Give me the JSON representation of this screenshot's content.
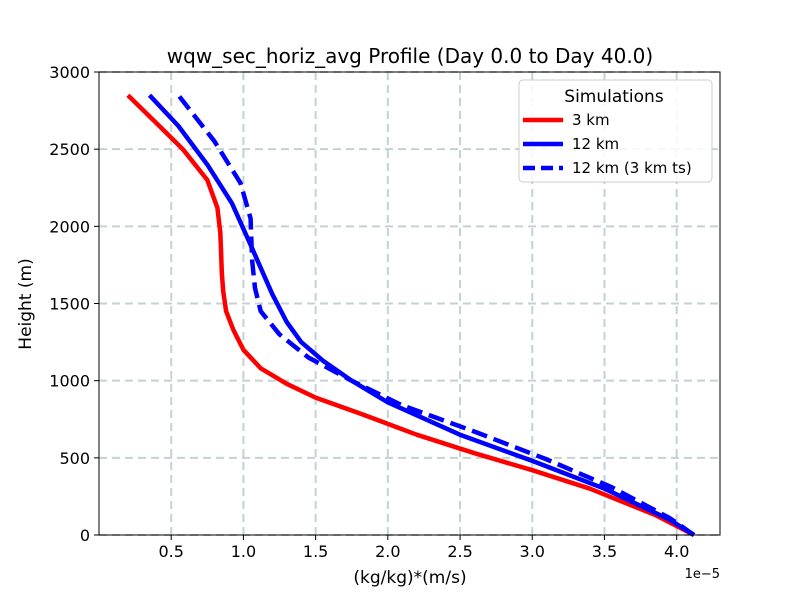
{
  "chart_data": {
    "type": "line",
    "title": "wqw_sec_horiz_avg Profile (Day 0.0 to Day 40.0)",
    "xlabel": "(kg/kg)*(m/s)",
    "ylabel": "Height (m)",
    "x_scale_label": "1e−5",
    "xlim": [
      0.0,
      4.3
    ],
    "ylim": [
      0,
      3000
    ],
    "xticks": [
      0.5,
      1.0,
      1.5,
      2.0,
      2.5,
      3.0,
      3.5,
      4.0
    ],
    "xtick_labels": [
      "0.5",
      "1.0",
      "1.5",
      "2.0",
      "2.5",
      "3.0",
      "3.5",
      "4.0"
    ],
    "yticks": [
      0,
      500,
      1000,
      1500,
      2000,
      2500,
      3000
    ],
    "ytick_labels": [
      "0",
      "500",
      "1000",
      "1500",
      "2000",
      "2500",
      "3000"
    ],
    "grid": true,
    "legend": {
      "title": "Simulations",
      "location": "upper-right"
    },
    "series": [
      {
        "name": "3 km",
        "color": "#ff0000",
        "style": "solid",
        "points": [
          [
            4.12,
            0
          ],
          [
            3.85,
            130
          ],
          [
            3.4,
            300
          ],
          [
            3.0,
            420
          ],
          [
            2.6,
            530
          ],
          [
            2.2,
            650
          ],
          [
            1.8,
            790
          ],
          [
            1.5,
            890
          ],
          [
            1.3,
            980
          ],
          [
            1.12,
            1080
          ],
          [
            1.0,
            1200
          ],
          [
            0.93,
            1330
          ],
          [
            0.88,
            1450
          ],
          [
            0.86,
            1580
          ],
          [
            0.85,
            1700
          ],
          [
            0.845,
            1850
          ],
          [
            0.84,
            1960
          ],
          [
            0.82,
            2120
          ],
          [
            0.75,
            2300
          ],
          [
            0.58,
            2500
          ],
          [
            0.45,
            2620
          ],
          [
            0.2,
            2850
          ]
        ]
      },
      {
        "name": "12 km",
        "color": "#0000ff",
        "style": "solid",
        "points": [
          [
            4.12,
            0
          ],
          [
            3.95,
            100
          ],
          [
            3.5,
            300
          ],
          [
            3.0,
            480
          ],
          [
            2.5,
            650
          ],
          [
            2.0,
            860
          ],
          [
            1.75,
            1000
          ],
          [
            1.55,
            1130
          ],
          [
            1.4,
            1250
          ],
          [
            1.3,
            1380
          ],
          [
            1.2,
            1560
          ],
          [
            1.05,
            1880
          ],
          [
            0.92,
            2150
          ],
          [
            0.75,
            2400
          ],
          [
            0.55,
            2650
          ],
          [
            0.35,
            2850
          ]
        ]
      },
      {
        "name": "12 km (3 km ts)",
        "color": "#0000ff",
        "style": "dashed",
        "points": [
          [
            4.12,
            0
          ],
          [
            3.95,
            110
          ],
          [
            3.55,
            310
          ],
          [
            3.1,
            490
          ],
          [
            2.6,
            670
          ],
          [
            2.1,
            840
          ],
          [
            1.75,
            1000
          ],
          [
            1.45,
            1150
          ],
          [
            1.25,
            1300
          ],
          [
            1.12,
            1450
          ],
          [
            1.08,
            1600
          ],
          [
            1.06,
            1780
          ],
          [
            1.05,
            2050
          ],
          [
            0.98,
            2280
          ],
          [
            0.8,
            2550
          ],
          [
            0.55,
            2850
          ]
        ]
      }
    ]
  }
}
